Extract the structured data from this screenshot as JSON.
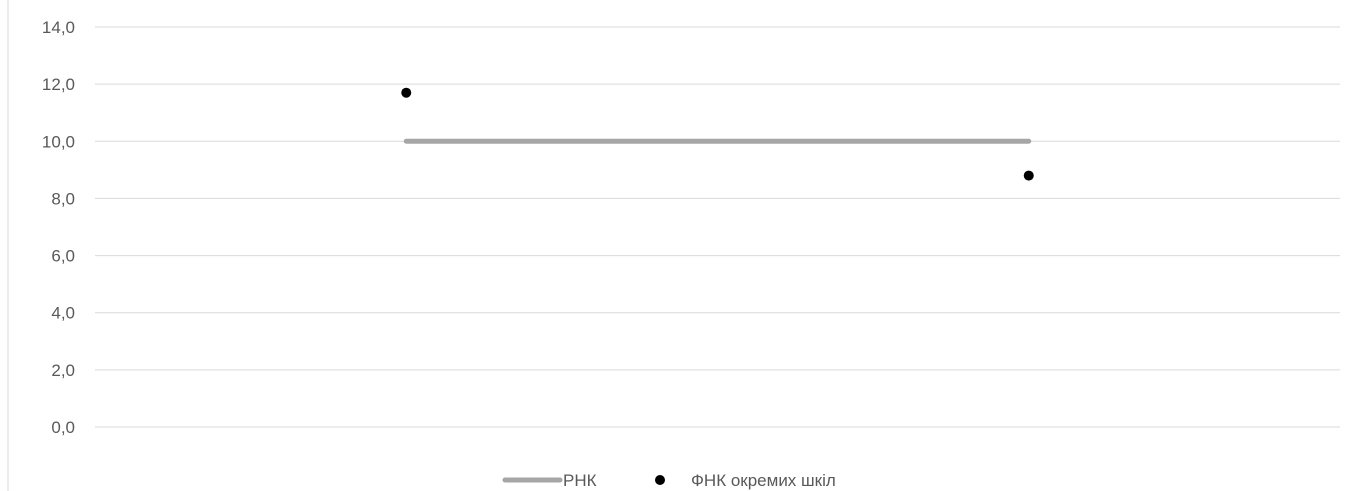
{
  "chart_data": {
    "type": "line",
    "title": "",
    "xlabel": "",
    "ylabel": "",
    "ylim": [
      0,
      14
    ],
    "yticks": [
      "0,0",
      "2,0",
      "4,0",
      "6,0",
      "8,0",
      "10,0",
      "12,0",
      "14,0"
    ],
    "grid": true,
    "legend_position": "bottom",
    "x": [
      1,
      2
    ],
    "series": [
      {
        "name": "РНК",
        "kind": "line",
        "color": "#a6a6a6",
        "values": [
          10.0,
          10.0
        ]
      },
      {
        "name": "ФНК окремих шкіл",
        "kind": "scatter",
        "color": "#000000",
        "values": [
          11.7,
          8.8
        ]
      }
    ]
  }
}
